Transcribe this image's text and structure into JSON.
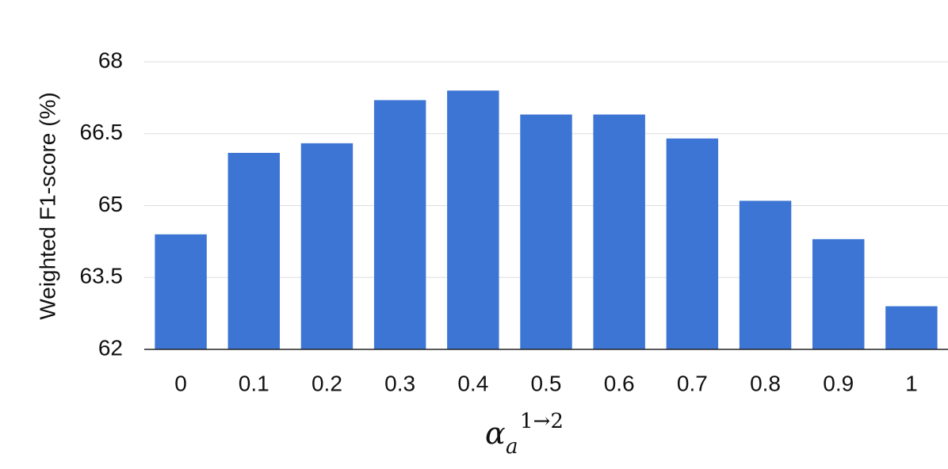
{
  "chart_data": {
    "type": "bar",
    "categories": [
      "0",
      "0.1",
      "0.2",
      "0.3",
      "0.4",
      "0.5",
      "0.6",
      "0.7",
      "0.8",
      "0.9",
      "1"
    ],
    "values": [
      64.4,
      66.1,
      66.3,
      67.2,
      67.4,
      66.9,
      66.9,
      66.4,
      65.1,
      64.3,
      62.9
    ],
    "title": "",
    "xlabel": {
      "main": "α",
      "subscript": "a",
      "superscript": "1→2"
    },
    "ylabel": "Weighted F1-score (%)",
    "ylim": [
      62,
      68
    ],
    "yticks": [
      "62",
      "63.5",
      "65",
      "66.5",
      "68"
    ],
    "grid": true,
    "legend": "none",
    "colors": {
      "bar": "#3d75d4",
      "grid": "#dddddd",
      "axis": "#222222"
    }
  }
}
